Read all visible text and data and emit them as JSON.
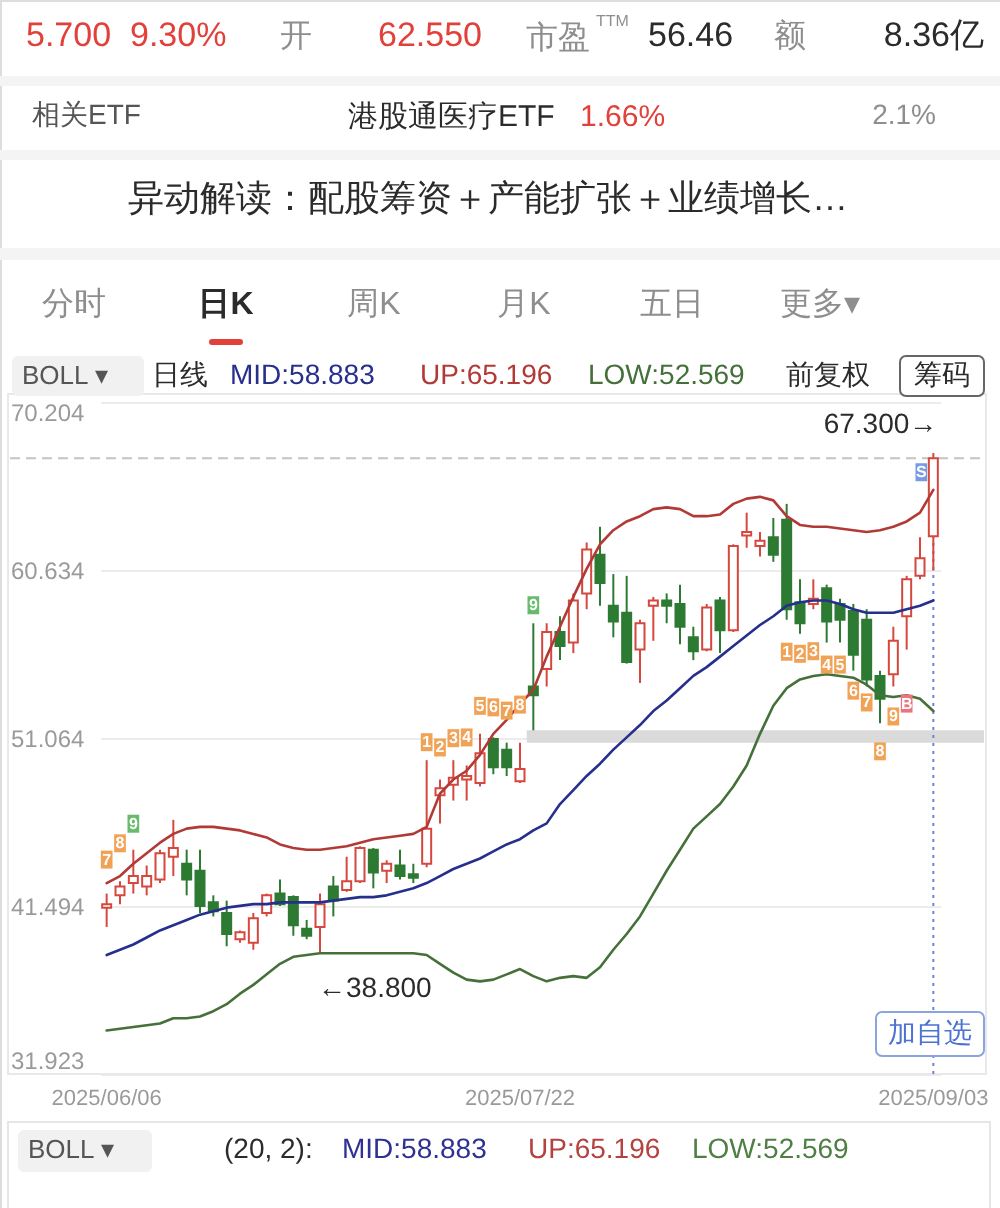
{
  "chart_data": {
    "type": "candlestick",
    "categories": [
      "2025/06/06",
      null,
      null,
      null,
      null,
      null,
      null,
      null,
      null,
      null,
      null,
      null,
      null,
      null,
      null,
      null,
      null,
      null,
      null,
      null,
      null,
      null,
      null,
      null,
      null,
      null,
      null,
      null,
      null,
      null,
      null,
      "2025/07/22",
      null,
      null,
      null,
      null,
      null,
      null,
      null,
      null,
      null,
      null,
      null,
      null,
      null,
      null,
      null,
      null,
      null,
      null,
      null,
      null,
      null,
      null,
      null,
      null,
      null,
      null,
      null,
      null,
      null,
      null,
      "2025/09/03"
    ],
    "ohlc": [
      [
        41.4,
        42.2,
        40.3,
        41.6
      ],
      [
        42.1,
        42.9,
        41.6,
        42.6
      ],
      [
        42.8,
        44.7,
        42.2,
        43.2
      ],
      [
        42.6,
        43.8,
        42.1,
        43.2
      ],
      [
        43.0,
        44.7,
        42.8,
        44.5
      ],
      [
        44.3,
        46.4,
        43.2,
        44.8
      ],
      [
        43.9,
        44.7,
        42.1,
        43.0
      ],
      [
        43.5,
        44.7,
        41.1,
        41.5
      ],
      [
        41.7,
        42.1,
        40.9,
        41.2
      ],
      [
        41.1,
        41.8,
        39.2,
        39.9
      ],
      [
        39.6,
        40.1,
        39.4,
        40.0
      ],
      [
        39.4,
        41.1,
        39.0,
        40.8
      ],
      [
        41.1,
        42.2,
        40.9,
        42.1
      ],
      [
        42.2,
        43.0,
        41.5,
        41.6
      ],
      [
        42.0,
        42.1,
        39.8,
        40.4
      ],
      [
        40.2,
        40.7,
        39.6,
        39.8
      ],
      [
        40.3,
        42.2,
        38.8,
        41.6
      ],
      [
        42.6,
        43.2,
        40.9,
        41.8
      ],
      [
        42.4,
        44.3,
        42.3,
        42.9
      ],
      [
        42.9,
        44.9,
        42.8,
        44.8
      ],
      [
        44.7,
        44.8,
        42.5,
        43.4
      ],
      [
        43.5,
        44.1,
        42.8,
        43.9
      ],
      [
        43.8,
        44.7,
        43.0,
        43.2
      ],
      [
        43.3,
        43.9,
        42.8,
        43.1
      ],
      [
        43.9,
        49.8,
        43.7,
        45.9
      ],
      [
        47.8,
        48.7,
        46.2,
        48.2
      ],
      [
        48.4,
        49.8,
        47.5,
        48.8
      ],
      [
        48.7,
        49.5,
        47.5,
        48.9
      ],
      [
        48.5,
        51.3,
        48.3,
        50.2
      ],
      [
        51.0,
        51.1,
        49.0,
        49.4
      ],
      [
        50.4,
        50.8,
        48.9,
        49.4
      ],
      [
        48.6,
        50.8,
        48.5,
        49.3
      ],
      [
        54.0,
        57.6,
        51.5,
        53.5
      ],
      [
        55.0,
        57.6,
        54.0,
        57.1
      ],
      [
        57.1,
        58.0,
        55.5,
        56.3
      ],
      [
        56.5,
        59.3,
        55.9,
        58.9
      ],
      [
        59.3,
        62.2,
        58.4,
        61.8
      ],
      [
        61.5,
        63.1,
        58.6,
        59.9
      ],
      [
        58.6,
        60.4,
        56.8,
        57.7
      ],
      [
        58.2,
        60.3,
        55.3,
        55.4
      ],
      [
        56.1,
        57.8,
        54.2,
        57.6
      ],
      [
        58.6,
        59.1,
        56.6,
        58.9
      ],
      [
        58.9,
        59.3,
        57.6,
        58.6
      ],
      [
        58.7,
        59.8,
        56.4,
        57.4
      ],
      [
        56.8,
        57.4,
        55.5,
        56.0
      ],
      [
        56.1,
        58.7,
        56.0,
        58.5
      ],
      [
        58.9,
        59.1,
        55.9,
        57.2
      ],
      [
        57.2,
        62.1,
        57.1,
        62.0
      ],
      [
        62.6,
        63.9,
        61.9,
        62.8
      ],
      [
        62.0,
        62.8,
        61.4,
        62.3
      ],
      [
        62.5,
        63.6,
        61.1,
        61.5
      ],
      [
        63.5,
        64.4,
        57.8,
        58.4
      ],
      [
        58.8,
        60.1,
        57.0,
        57.6
      ],
      [
        58.7,
        60.1,
        58.4,
        59.0
      ],
      [
        59.6,
        59.8,
        56.5,
        57.7
      ],
      [
        58.7,
        59.0,
        56.5,
        57.8
      ],
      [
        58.3,
        58.7,
        54.9,
        55.8
      ],
      [
        57.8,
        58.4,
        54.0,
        54.4
      ],
      [
        54.6,
        54.9,
        51.9,
        53.3
      ],
      [
        54.7,
        57.4,
        54.0,
        56.6
      ],
      [
        58.0,
        60.3,
        56.1,
        60.1
      ],
      [
        60.3,
        62.5,
        60.1,
        61.3
      ],
      [
        62.55,
        67.3,
        60.6,
        67.0
      ]
    ],
    "colors": [
      "#d6473e",
      "#d6473e",
      "#d6473e",
      "#d6473e",
      "#d6473e",
      "#d6473e",
      "#2d7a32",
      "#2d7a32",
      "#2d7a32",
      "#2d7a32",
      "#d6473e",
      "#d6473e",
      "#d6473e",
      "#2d7a32",
      "#2d7a32",
      "#2d7a32",
      "#d6473e",
      "#2d7a32",
      "#d6473e",
      "#d6473e",
      "#2d7a32",
      "#d6473e",
      "#2d7a32",
      "#2d7a32",
      "#d6473e",
      "#d6473e",
      "#d6473e",
      "#d6473e",
      "#d6473e",
      "#2d7a32",
      "#2d7a32",
      "#d6473e",
      "#2d7a32",
      "#d6473e",
      "#2d7a32",
      "#d6473e",
      "#d6473e",
      "#2d7a32",
      "#2d7a32",
      "#2d7a32",
      "#d6473e",
      "#d6473e",
      "#2d7a32",
      "#2d7a32",
      "#2d7a32",
      "#d6473e",
      "#2d7a32",
      "#d6473e",
      "#d6473e",
      "#d6473e",
      "#2d7a32",
      "#2d7a32",
      "#2d7a32",
      "#d6473e",
      "#2d7a32",
      "#2d7a32",
      "#2d7a32",
      "#2d7a32",
      "#2d7a32",
      "#d6473e",
      "#d6473e",
      "#d6473e",
      "#d6473e"
    ],
    "series": [
      {
        "name": "MID:58.883",
        "type": "line",
        "color": "#262f8c",
        "values": [
          38.7,
          39.0,
          39.3,
          39.7,
          40.1,
          40.4,
          40.7,
          41.0,
          41.2,
          41.4,
          41.5,
          41.6,
          41.6,
          41.7,
          41.7,
          41.7,
          41.7,
          41.8,
          41.9,
          42.0,
          42.0,
          42.1,
          42.3,
          42.5,
          42.8,
          43.2,
          43.6,
          43.9,
          44.2,
          44.6,
          45.0,
          45.3,
          45.8,
          46.2,
          47.3,
          48.1,
          48.9,
          49.6,
          50.4,
          51.1,
          51.8,
          52.6,
          53.2,
          53.9,
          54.6,
          55.1,
          55.7,
          56.3,
          56.9,
          57.5,
          58.0,
          58.6,
          58.8,
          58.9,
          58.9,
          58.7,
          58.4,
          58.2,
          58.2,
          58.2,
          58.4,
          58.6,
          58.9
        ]
      },
      {
        "name": "UP:65.196",
        "type": "line",
        "color": "#b23a36",
        "values": [
          42.8,
          43.2,
          43.9,
          44.5,
          45.1,
          45.6,
          45.9,
          46.0,
          46.0,
          45.9,
          45.8,
          45.6,
          45.4,
          45.0,
          44.8,
          44.7,
          44.7,
          44.8,
          44.9,
          45.1,
          45.3,
          45.4,
          45.5,
          45.6,
          46.0,
          47.9,
          48.7,
          49.2,
          50.1,
          51.3,
          52.1,
          53.0,
          53.8,
          55.7,
          57.4,
          59.1,
          60.7,
          62.1,
          62.9,
          63.4,
          63.7,
          64.1,
          64.2,
          64.1,
          63.7,
          63.7,
          63.8,
          64.4,
          64.7,
          64.8,
          64.6,
          63.7,
          63.2,
          63.1,
          63.1,
          63.0,
          62.9,
          62.8,
          62.9,
          63.1,
          63.4,
          63.9,
          65.2
        ]
      },
      {
        "name": "LOW:52.569",
        "type": "line",
        "color": "#45703a",
        "values": [
          34.4,
          34.5,
          34.6,
          34.7,
          34.8,
          35.1,
          35.1,
          35.2,
          35.5,
          35.9,
          36.5,
          37.0,
          37.6,
          38.2,
          38.6,
          38.7,
          38.8,
          38.8,
          38.8,
          38.8,
          38.8,
          38.8,
          38.8,
          38.8,
          38.7,
          38.2,
          37.7,
          37.3,
          37.2,
          37.3,
          37.6,
          37.9,
          37.5,
          37.2,
          37.4,
          37.5,
          37.4,
          38.0,
          39.0,
          39.9,
          40.9,
          42.2,
          43.5,
          44.7,
          45.9,
          46.6,
          47.3,
          48.3,
          49.5,
          51.3,
          52.9,
          53.9,
          54.4,
          54.6,
          54.7,
          54.6,
          54.5,
          54.1,
          53.5,
          53.4,
          53.5,
          53.3,
          52.6
        ]
      }
    ],
    "bands": [
      {
        "axis": "y",
        "from": 50.8,
        "to": 51.5,
        "color": "#dadada"
      }
    ],
    "ylim": [
      31.923,
      70.204
    ],
    "yticks": [
      31.923,
      41.494,
      51.064,
      60.634,
      70.204
    ],
    "grid": "y",
    "legend": "top",
    "ref_lines": [
      {
        "axis": "y",
        "value": 67.0,
        "color": "#c4c4c4",
        "line_style": "dashed"
      },
      {
        "axis": "x",
        "value": "2025/09/03",
        "color": "#6f83d9",
        "line_style": "dotted"
      }
    ],
    "annotations": [
      "5.700",
      "9.30%",
      "开",
      "62.550",
      "市盈$^{TTM}$",
      "56.46",
      "额",
      "8.36亿",
      "相关ETF",
      "港股通医疗ETF",
      "1.66%",
      "2.1%",
      "异动解读：配股筹资＋产能扩张＋业绩增长…",
      "分时",
      "日K",
      "周K",
      "月K",
      "五日",
      "更多▾",
      "BOLL ▾",
      "日线",
      "前复权",
      "筹码",
      {
        "text": "67.300→",
        "x": "2025/09/03",
        "y": 67.3
      },
      {
        "text": "←38.800",
        "y": 38.8
      },
      {
        "text": "7",
        "y": 42.2
      },
      {
        "text": "8",
        "y": 42.9
      },
      {
        "text": "9",
        "y": 44.7
      },
      {
        "text": "1",
        "y": 49.8
      },
      {
        "text": "2",
        "y": 48.7
      },
      {
        "text": "3",
        "y": 49.8
      },
      {
        "text": "4",
        "y": 49.5
      },
      {
        "text": "5",
        "y": 51.3
      },
      {
        "text": "6",
        "y": 51.1
      },
      {
        "text": "7",
        "y": 50.8
      },
      {
        "text": "8",
        "y": 50.8
      },
      {
        "text": "9",
        "y": 57.6
      },
      {
        "text": "1",
        "y": 57.8
      },
      {
        "text": "2",
        "y": 57.0
      },
      {
        "text": "3",
        "y": 58.4
      },
      {
        "text": "4",
        "y": 56.5
      },
      {
        "text": "5",
        "y": 56.5
      },
      {
        "text": "6",
        "y": 54.9
      },
      {
        "text": "7",
        "y": 54.0
      },
      {
        "text": "8",
        "y": 51.9
      },
      {
        "text": "9",
        "y": 54.0
      },
      {
        "text": "B",
        "y": 56.1
      },
      {
        "text": "S",
        "x": "2025/09/03",
        "y": 67.0
      },
      "加自选",
      "BOLL ▾",
      "(20, 2):",
      "MID:58.883",
      "UP:65.196",
      "LOW:52.569"
    ]
  }
}
